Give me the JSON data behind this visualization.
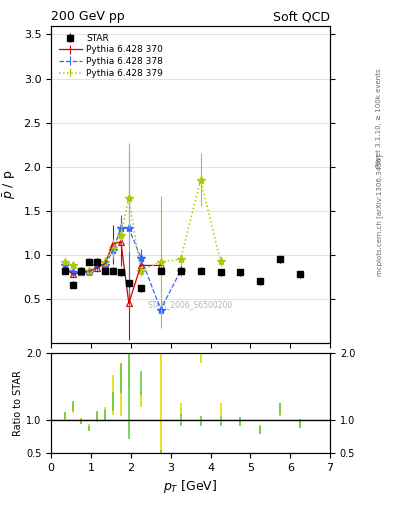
{
  "title_left": "200 GeV pp",
  "title_right": "Soft QCD",
  "ylabel_main": "$\\bar{p}$ / p",
  "ylabel_ratio": "Ratio to STAR",
  "xlabel": "$p_T$ [GeV]",
  "right_label_top": "Rivet 3.1.10, ≥ 100k events",
  "right_label_bottom": "mcplots.cern.ch [arXiv:1306.3436]",
  "watermark": "STAR_2006_S6500200",
  "star_x": [
    0.35,
    0.55,
    0.75,
    0.95,
    1.15,
    1.35,
    1.55,
    1.75,
    1.95,
    2.25,
    2.75,
    3.25,
    3.75,
    4.25,
    4.75,
    5.25,
    5.75,
    6.25
  ],
  "star_y": [
    0.82,
    0.66,
    0.82,
    0.92,
    0.92,
    0.82,
    0.82,
    0.8,
    0.68,
    0.62,
    0.82,
    0.82,
    0.82,
    0.8,
    0.8,
    0.7,
    0.95,
    0.78
  ],
  "star_yerr": [
    0.04,
    0.04,
    0.04,
    0.04,
    0.04,
    0.04,
    0.04,
    0.04,
    0.04,
    0.04,
    0.04,
    0.04,
    0.04,
    0.04,
    0.04,
    0.04,
    0.04,
    0.04
  ],
  "py370_x": [
    0.35,
    0.55,
    0.75,
    0.95,
    1.15,
    1.35,
    1.55,
    1.75,
    1.95,
    2.25,
    2.75
  ],
  "py370_y": [
    0.85,
    0.78,
    0.8,
    0.82,
    0.85,
    0.9,
    1.12,
    1.15,
    0.45,
    0.88,
    0.88
  ],
  "py370_yerr": [
    0.03,
    0.03,
    0.03,
    0.03,
    0.05,
    0.08,
    0.22,
    0.28,
    0.42,
    0.08,
    0.08
  ],
  "py378_x": [
    0.35,
    0.55,
    0.75,
    0.95,
    1.15,
    1.35,
    1.55,
    1.75,
    1.95,
    2.25,
    2.75,
    3.25
  ],
  "py378_y": [
    0.88,
    0.8,
    0.8,
    0.8,
    0.88,
    0.88,
    1.05,
    1.3,
    1.3,
    0.97,
    0.38,
    0.82
  ],
  "py378_yerr": [
    0.03,
    0.03,
    0.03,
    0.03,
    0.05,
    0.06,
    0.1,
    0.15,
    0.9,
    0.1,
    0.06,
    0.06
  ],
  "py379_x": [
    0.35,
    0.55,
    0.75,
    0.95,
    1.15,
    1.35,
    1.55,
    1.75,
    1.95,
    2.25,
    2.75,
    3.25,
    3.75,
    4.25
  ],
  "py379_y": [
    0.92,
    0.88,
    0.82,
    0.82,
    0.92,
    0.92,
    1.08,
    1.22,
    1.65,
    0.82,
    0.92,
    0.95,
    1.85,
    0.93
  ],
  "py379_yerr": [
    0.03,
    0.04,
    0.03,
    0.03,
    0.05,
    0.06,
    0.1,
    0.14,
    0.62,
    0.06,
    0.75,
    0.06,
    0.3,
    0.06
  ],
  "xlim": [
    0.0,
    7.0
  ],
  "ylim_main": [
    0.0,
    3.6
  ],
  "ylim_ratio": [
    0.5,
    2.0
  ],
  "color_star": "#000000",
  "color_py370": "#cc0000",
  "color_py378": "#3366ff",
  "color_py379": "#aacc00",
  "ratio_yellow_x": [
    0.35,
    0.55,
    0.75,
    0.95,
    1.15,
    1.35,
    1.55,
    1.75,
    1.95,
    2.25,
    2.75,
    3.25,
    3.75,
    4.25,
    4.75,
    5.25,
    5.75,
    6.25
  ],
  "ratio_yellow_y": [
    1.04,
    1.18,
    0.98,
    0.89,
    1.04,
    1.1,
    1.37,
    1.44,
    2.43,
    1.32,
    1.12,
    1.16,
    2.26,
    1.16,
    0.98,
    0.85,
    1.16,
    0.95
  ],
  "ratio_yellow_yerr": [
    0.06,
    0.08,
    0.05,
    0.05,
    0.07,
    0.1,
    0.3,
    0.38,
    0.95,
    0.12,
    0.95,
    0.1,
    0.4,
    0.1,
    0.07,
    0.07,
    0.1,
    0.07
  ],
  "ratio_green_x": [
    0.35,
    0.55,
    0.75,
    0.95,
    1.15,
    1.35,
    1.55,
    1.75,
    1.95,
    2.25,
    2.75,
    3.25,
    3.75,
    4.25,
    4.75,
    5.25,
    5.75,
    6.25
  ],
  "ratio_green_y": [
    1.07,
    1.21,
    0.98,
    0.87,
    1.07,
    1.07,
    1.28,
    1.63,
    1.91,
    1.56,
    0.46,
    1.0,
    0.98,
    0.98,
    0.98,
    0.85,
    1.16,
    0.95
  ],
  "ratio_green_yerr": [
    0.05,
    0.07,
    0.04,
    0.04,
    0.07,
    0.08,
    0.14,
    0.22,
    1.2,
    0.18,
    0.08,
    0.09,
    0.08,
    0.08,
    0.07,
    0.06,
    0.09,
    0.07
  ]
}
